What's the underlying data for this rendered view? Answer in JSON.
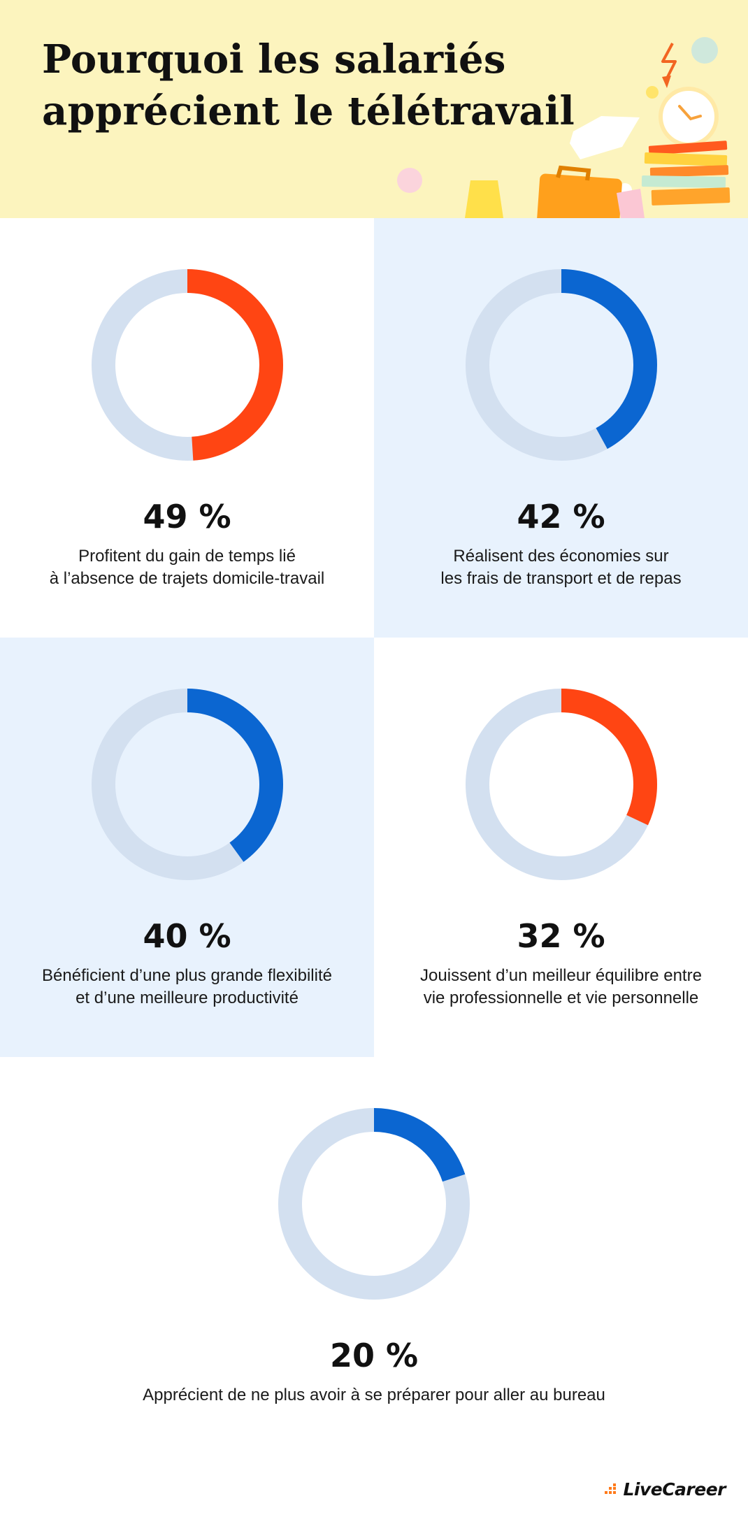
{
  "header": {
    "title_lines": [
      "Pourquoi les salariés",
      "apprécient le télétravail"
    ]
  },
  "colors": {
    "header_bg": "#fcf4be",
    "cell_blue_bg": "#e8f2fd",
    "track": "#d3e0f0",
    "orange": "#ff4513",
    "blue": "#0b66d1"
  },
  "chart_data": {
    "type": "pie",
    "variant": "donut",
    "items": [
      {
        "value": 49,
        "value_label": "49 %",
        "color": "#ff4513",
        "label_lines": [
          "Profitent du gain de temps lié",
          "à l’absence de trajets domicile-travail"
        ]
      },
      {
        "value": 42,
        "value_label": "42 %",
        "color": "#0b66d1",
        "label_lines": [
          "Réalisent des économies sur",
          "les frais de transport et de repas"
        ]
      },
      {
        "value": 40,
        "value_label": "40 %",
        "color": "#0b66d1",
        "label_lines": [
          "Bénéficient d’une plus grande flexibilité",
          "et d’une meilleure productivité"
        ]
      },
      {
        "value": 32,
        "value_label": "32 %",
        "color": "#ff4513",
        "label_lines": [
          "Jouissent d’un meilleur équilibre entre",
          "vie professionnelle et vie personnelle"
        ]
      },
      {
        "value": 20,
        "value_label": "20 %",
        "color": "#0b66d1",
        "label_lines": [
          "Apprécient de ne plus avoir à se préparer pour aller au bureau"
        ]
      }
    ]
  },
  "brand": {
    "name": "LiveCareer"
  }
}
